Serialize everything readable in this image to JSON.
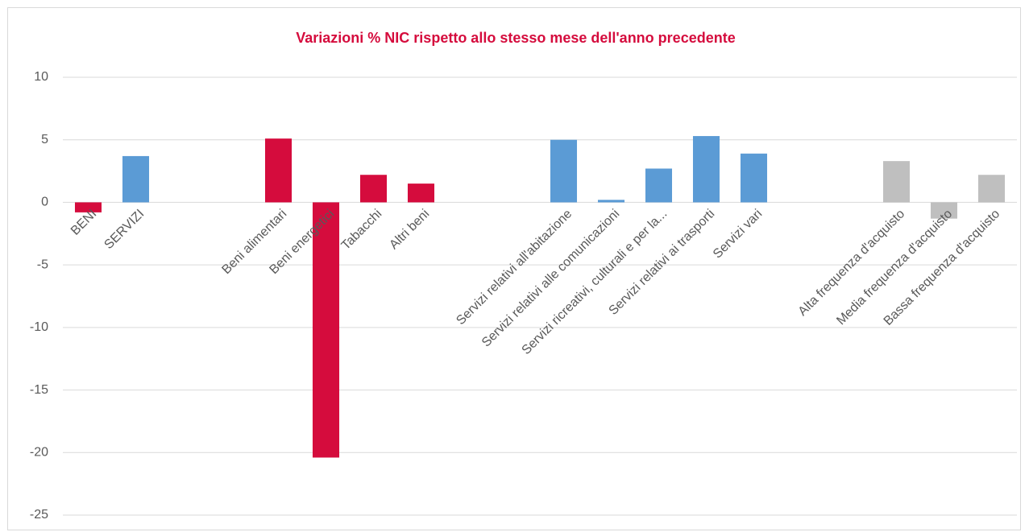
{
  "chart_data": {
    "type": "bar",
    "title": "Variazioni % NIC rispetto allo stesso mese dell'anno precedente",
    "categories": [
      "BENI",
      "SERVIZI",
      null,
      null,
      "Beni alimentari",
      "Beni energetici",
      "Tabacchi",
      "Altri beni",
      null,
      null,
      "Servizi relativi all'abitazione",
      "Servizi relativi alle comunicazioni",
      "Servizi ricreativi, culturali e per la...",
      "Servizi relativi ai trasporti",
      "Servizi vari",
      null,
      null,
      "Alta frequenza d'acquisto",
      "Media frequenza d'acquisto",
      "Bassa frequenza d'acquisto"
    ],
    "values": [
      -0.8,
      3.7,
      null,
      null,
      5.1,
      -20.4,
      2.2,
      1.5,
      null,
      null,
      5.0,
      0.2,
      2.7,
      5.3,
      3.9,
      null,
      null,
      3.3,
      -1.3,
      2.2
    ],
    "colors": [
      "#d50c3d",
      "#5b9bd5",
      null,
      null,
      "#d50c3d",
      "#d50c3d",
      "#d50c3d",
      "#d50c3d",
      null,
      null,
      "#5b9bd5",
      "#5b9bd5",
      "#5b9bd5",
      "#5b9bd5",
      "#5b9bd5",
      null,
      null,
      "#bfbfbf",
      "#bfbfbf",
      "#bfbfbf"
    ],
    "ylim": [
      -25,
      10
    ],
    "yticks": [
      -25,
      -20,
      -15,
      -10,
      -5,
      0,
      5,
      10
    ],
    "grid": true
  }
}
